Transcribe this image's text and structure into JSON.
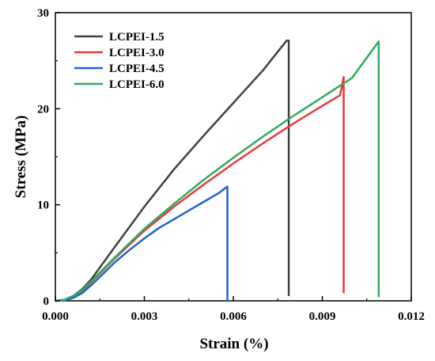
{
  "chart_data": {
    "type": "line",
    "xlabel": "Strain (%)",
    "ylabel": "Stress (MPa)",
    "xlim": [
      0,
      0.012
    ],
    "ylim": [
      0,
      30
    ],
    "xticks": [
      0,
      0.003,
      0.006,
      0.009,
      0.012
    ],
    "xtick_labels": [
      "0.000",
      "0.003",
      "0.006",
      "0.009",
      "0.012"
    ],
    "yticks": [
      0,
      10,
      20,
      30
    ],
    "ytick_labels": [
      "0",
      "10",
      "20",
      "30"
    ],
    "grid": false,
    "legend_position": "top-left",
    "series": [
      {
        "name": "LCPEI-1.5",
        "color": "#404040",
        "x": [
          0,
          0.0003,
          0.0006,
          0.0009,
          0.0012,
          0.002,
          0.003,
          0.004,
          0.005,
          0.006,
          0.007,
          0.0078,
          0.00787,
          0.00787
        ],
        "y": [
          0,
          0.1,
          0.5,
          1.2,
          2.2,
          5.6,
          9.8,
          13.7,
          17.2,
          20.6,
          24.0,
          27.1,
          27.1,
          0.5
        ]
      },
      {
        "name": "LCPEI-3.0",
        "color": "#e8393d",
        "x": [
          0,
          0.0003,
          0.0006,
          0.0009,
          0.0012,
          0.002,
          0.003,
          0.004,
          0.005,
          0.006,
          0.007,
          0.008,
          0.009,
          0.0096,
          0.00972,
          0.00972
        ],
        "y": [
          0,
          0.1,
          0.4,
          1.0,
          1.9,
          4.4,
          7.3,
          9.8,
          12.1,
          14.3,
          16.4,
          18.4,
          20.3,
          21.4,
          23.3,
          0.8
        ]
      },
      {
        "name": "LCPEI-4.5",
        "color": "#1f63d1",
        "x": [
          0,
          0.0003,
          0.0006,
          0.0009,
          0.0012,
          0.0015,
          0.002,
          0.0025,
          0.003,
          0.0035,
          0.004,
          0.0045,
          0.005,
          0.0055,
          0.0058,
          0.0058
        ],
        "y": [
          0,
          0.05,
          0.3,
          0.8,
          1.6,
          2.5,
          4.0,
          5.3,
          6.5,
          7.6,
          8.5,
          9.4,
          10.3,
          11.2,
          11.9,
          0
        ]
      },
      {
        "name": "LCPEI-6.0",
        "color": "#2eaa5c",
        "x": [
          0,
          0.0003,
          0.0006,
          0.0009,
          0.0012,
          0.002,
          0.003,
          0.004,
          0.005,
          0.006,
          0.007,
          0.008,
          0.009,
          0.01,
          0.0109,
          0.0109
        ],
        "y": [
          0,
          0.1,
          0.5,
          1.1,
          2.0,
          4.5,
          7.5,
          10.1,
          12.6,
          14.9,
          17.1,
          19.2,
          21.2,
          23.2,
          27.0,
          0.4
        ]
      }
    ]
  }
}
